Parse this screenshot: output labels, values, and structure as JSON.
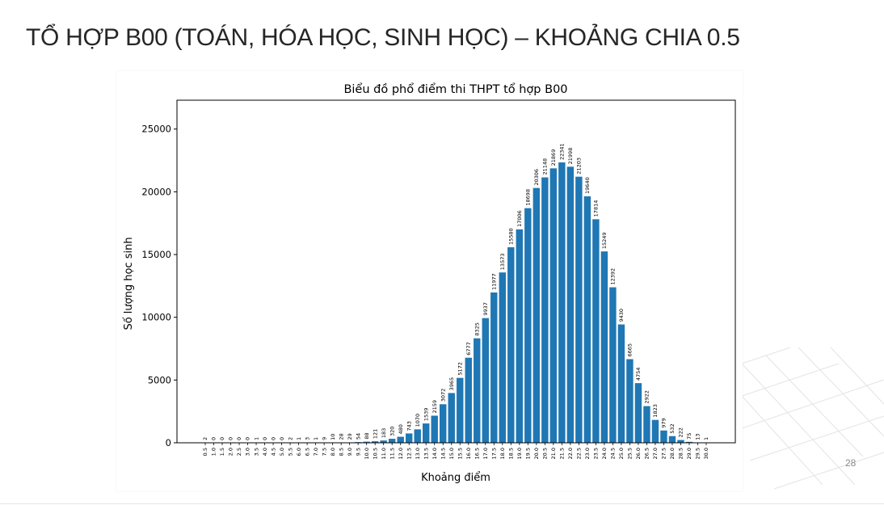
{
  "slide": {
    "title": "TỔ HỢP B00 (TOÁN, HÓA HỌC, SINH HỌC) – KHOẢNG CHIA 0.5",
    "page_number": "28"
  },
  "chart_data": {
    "type": "bar",
    "title": "Biểu đồ phổ điểm thi THPT tổ hợp B00",
    "xlabel": "Khoảng điểm",
    "ylabel": "Số lượng học sinh",
    "ylim": [
      0,
      27300
    ],
    "yticks": [
      0,
      5000,
      10000,
      15000,
      20000,
      25000
    ],
    "bar_color": "#1f77b4",
    "categories": [
      "0.5",
      "1.0",
      "1.5",
      "2.0",
      "2.5",
      "3.0",
      "3.5",
      "4.0",
      "4.5",
      "5.0",
      "5.5",
      "6.0",
      "6.5",
      "7.0",
      "7.5",
      "8.0",
      "8.5",
      "9.0",
      "9.5",
      "10.0",
      "10.5",
      "11.0",
      "11.5",
      "12.0",
      "12.5",
      "13.0",
      "13.5",
      "14.0",
      "14.5",
      "15.0",
      "15.5",
      "16.0",
      "16.5",
      "17.0",
      "17.5",
      "18.0",
      "18.5",
      "19.0",
      "19.5",
      "20.0",
      "20.5",
      "21.0",
      "21.5",
      "22.0",
      "22.5",
      "23.0",
      "23.5",
      "24.0",
      "24.5",
      "25.0",
      "25.5",
      "26.0",
      "26.5",
      "27.0",
      "27.5",
      "28.0",
      "28.5",
      "29.0",
      "29.5",
      "30.0"
    ],
    "values": [
      2,
      0,
      0,
      0,
      0,
      0,
      1,
      0,
      0,
      0,
      2,
      1,
      3,
      1,
      9,
      10,
      28,
      29,
      54,
      88,
      121,
      183,
      320,
      480,
      743,
      1070,
      1539,
      2159,
      3072,
      3965,
      5172,
      6777,
      8325,
      9937,
      11977,
      13573,
      15580,
      17006,
      18698,
      20306,
      21148,
      21869,
      22341,
      21998,
      21203,
      19640,
      17814,
      15249,
      12392,
      9430,
      6665,
      4754,
      2922,
      1823,
      979,
      532,
      222,
      75,
      13,
      1
    ]
  }
}
